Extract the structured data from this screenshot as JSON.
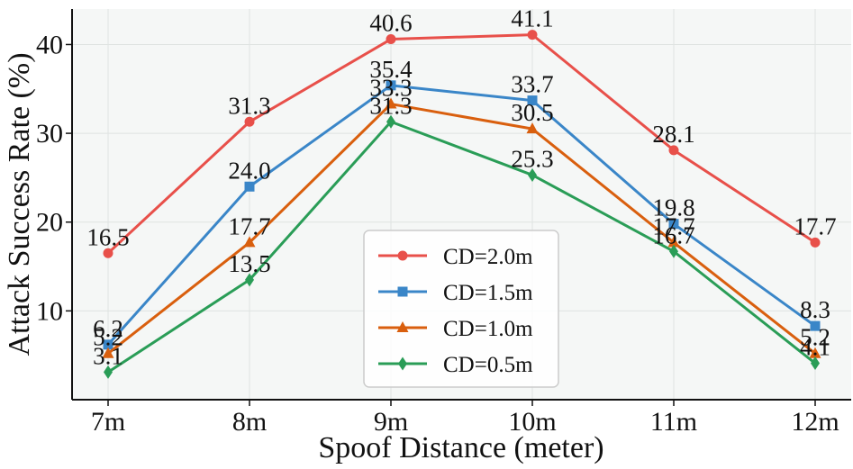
{
  "chart_data": {
    "type": "line",
    "title": "",
    "xlabel": "Spoof Distance (meter)",
    "ylabel": "Attack Success Rate (%)",
    "categories": [
      "7m",
      "8m",
      "9m",
      "10m",
      "11m",
      "12m"
    ],
    "ylim": [
      0,
      44
    ],
    "yticks": [
      10,
      20,
      30,
      40
    ],
    "grid": true,
    "legend_position": "center-bottom",
    "series": [
      {
        "name": "CD=2.0m",
        "marker": "circle",
        "color": "#e8504a",
        "values": [
          16.5,
          31.3,
          40.6,
          41.1,
          28.1,
          17.7
        ],
        "labels": [
          "16.5",
          "31.3",
          "40.6",
          "41.1",
          "28.1",
          "17.7"
        ]
      },
      {
        "name": "CD=1.5m",
        "marker": "square",
        "color": "#3a86c8",
        "values": [
          6.2,
          24.0,
          35.4,
          33.7,
          19.8,
          8.3
        ],
        "labels": [
          "6.2",
          "24.0",
          "35.4",
          "33.7",
          "19.8",
          "8.3"
        ]
      },
      {
        "name": "CD=1.0m",
        "marker": "triangle",
        "color": "#d95f0e",
        "values": [
          5.2,
          17.7,
          33.3,
          30.5,
          17.7,
          5.2
        ],
        "labels": [
          "5.2",
          "17.7",
          "33.3",
          "30.5",
          "17.7",
          "5.2"
        ]
      },
      {
        "name": "CD=0.5m",
        "marker": "diamond",
        "color": "#2a9d57",
        "values": [
          3.1,
          13.5,
          31.3,
          25.3,
          16.7,
          4.1
        ],
        "labels": [
          "3.1",
          "13.5",
          "31.3",
          "25.3",
          "16.7",
          "4.1"
        ]
      }
    ]
  }
}
